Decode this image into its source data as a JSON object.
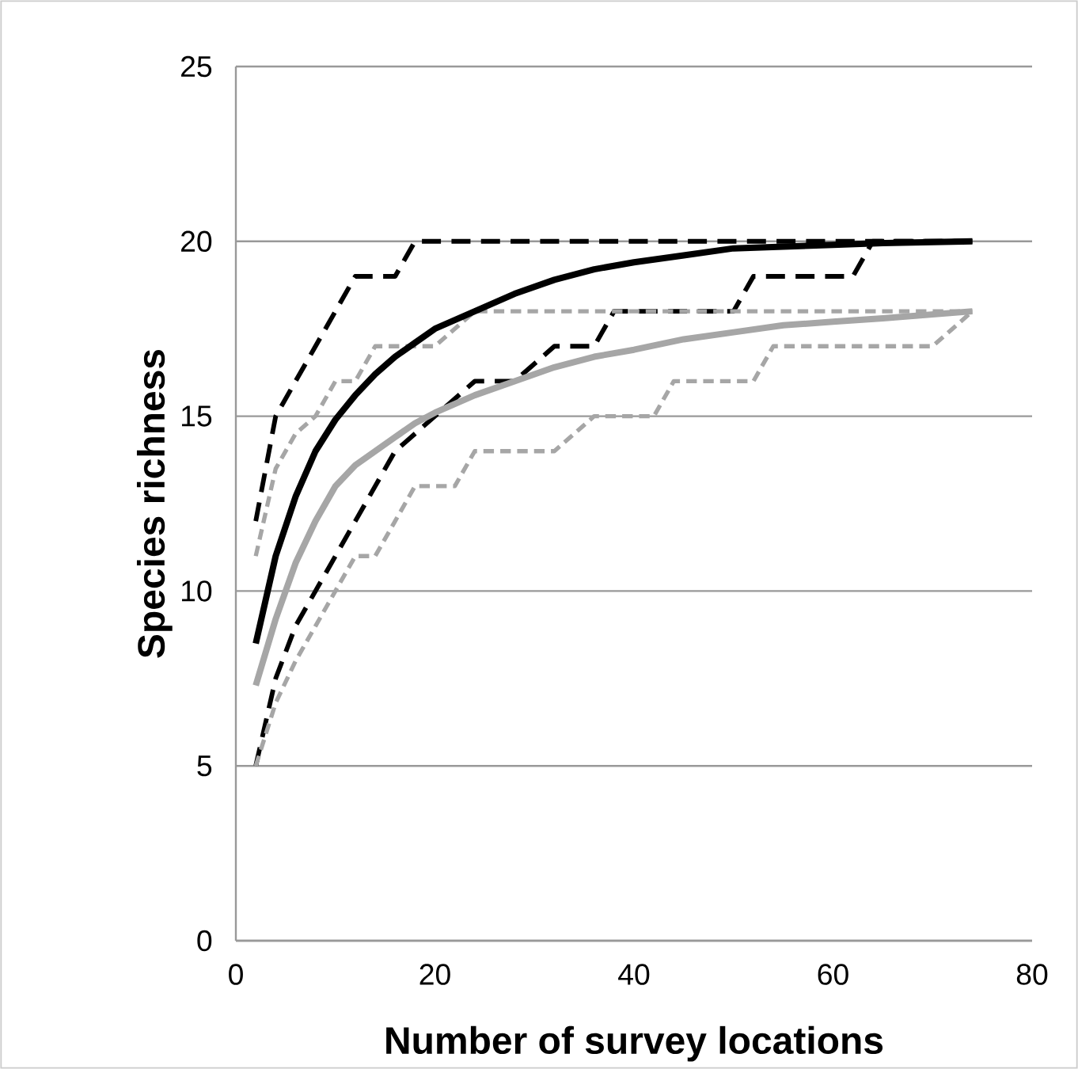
{
  "chart_data": {
    "type": "line",
    "xlabel": "Number of survey locations",
    "ylabel": "Species richness",
    "xlim": [
      0,
      80
    ],
    "ylim": [
      0,
      25
    ],
    "xticks": [
      0,
      20,
      40,
      60,
      80
    ],
    "yticks": [
      0,
      5,
      10,
      15,
      20,
      25
    ],
    "grid": "y",
    "legend": false,
    "marker": "none",
    "series": [
      {
        "color": "#000000",
        "line_style": "dashed",
        "x": [
          2,
          4,
          6,
          8,
          10,
          12,
          16,
          18,
          74
        ],
        "values": [
          12,
          15,
          16,
          17,
          18,
          19,
          19,
          20,
          20
        ]
      },
      {
        "color": "#000000",
        "line_style": "dashed",
        "x": [
          2,
          4,
          6,
          8,
          10,
          12,
          14,
          16,
          18,
          20,
          24,
          28,
          32,
          36,
          38,
          50,
          52,
          62,
          64,
          74
        ],
        "values": [
          5,
          7.5,
          9,
          10,
          11,
          12,
          13,
          14,
          14.5,
          15,
          16,
          16,
          17,
          17,
          18,
          18,
          19,
          19,
          20,
          20
        ]
      },
      {
        "color": "#a6a6a6",
        "line_style": "dashed",
        "x": [
          2,
          4,
          6,
          8,
          10,
          12,
          14,
          20,
          24,
          74
        ],
        "values": [
          11,
          13.5,
          14.5,
          15,
          16,
          16,
          17,
          17,
          18,
          18
        ]
      },
      {
        "color": "#a6a6a6",
        "line_style": "dashed",
        "x": [
          2,
          4,
          6,
          8,
          10,
          12,
          14,
          16,
          18,
          22,
          24,
          32,
          36,
          42,
          44,
          52,
          54,
          70,
          74
        ],
        "values": [
          5,
          6.8,
          8,
          9,
          10,
          11,
          11,
          12,
          13,
          13,
          14,
          14,
          15,
          15,
          16,
          16,
          17,
          17,
          18
        ]
      },
      {
        "color": "#a6a6a6",
        "line_style": "solid",
        "x": [
          2,
          4,
          6,
          8,
          10,
          12,
          14,
          16,
          18,
          20,
          24,
          28,
          32,
          36,
          40,
          45,
          50,
          55,
          60,
          65,
          74
        ],
        "values": [
          7.3,
          9.2,
          10.8,
          12,
          13,
          13.6,
          14,
          14.4,
          14.8,
          15.1,
          15.6,
          16,
          16.4,
          16.7,
          16.9,
          17.2,
          17.4,
          17.6,
          17.7,
          17.8,
          18
        ]
      },
      {
        "color": "#000000",
        "line_style": "solid",
        "x": [
          2,
          4,
          6,
          8,
          10,
          12,
          14,
          16,
          18,
          20,
          24,
          28,
          32,
          36,
          40,
          45,
          50,
          55,
          60,
          65,
          74
        ],
        "values": [
          8.5,
          11,
          12.7,
          14,
          14.9,
          15.6,
          16.2,
          16.7,
          17.1,
          17.5,
          18,
          18.5,
          18.9,
          19.2,
          19.4,
          19.6,
          19.8,
          19.85,
          19.9,
          19.95,
          20
        ]
      }
    ]
  }
}
